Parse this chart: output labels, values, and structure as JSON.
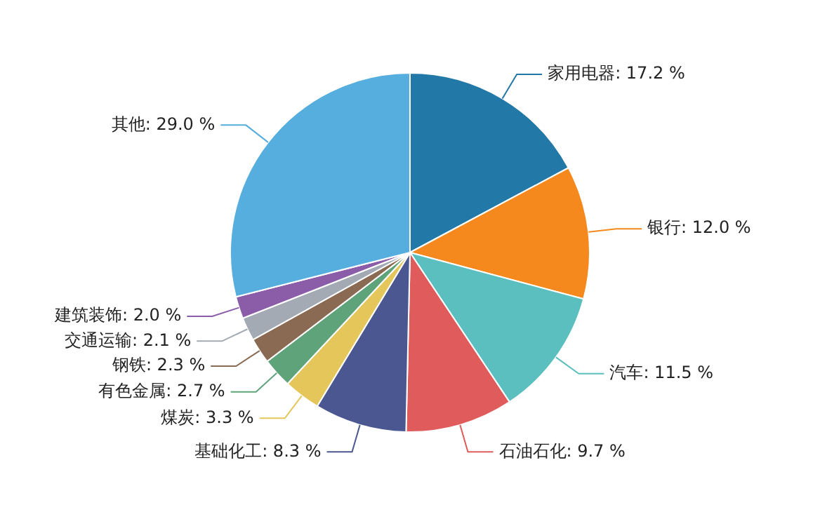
{
  "chart_data": {
    "type": "pie",
    "categories": [
      "家用电器",
      "银行",
      "汽车",
      "石油石化",
      "基础化工",
      "煤炭",
      "有色金属",
      "钢铁",
      "交通运输",
      "建筑装饰",
      "其他"
    ],
    "values": [
      17.2,
      12.0,
      11.5,
      9.7,
      8.3,
      3.3,
      2.7,
      2.3,
      2.1,
      2.0,
      29.0
    ],
    "value_labels": [
      "17.2 %",
      "12.0 %",
      "11.5 %",
      "9.7 %",
      "8.3 %",
      "3.3 %",
      "2.7 %",
      "2.3 %",
      "2.1 %",
      "2.0 %",
      "29.0 %"
    ],
    "colors": [
      "#2278a6",
      "#f5891e",
      "#5bbfbf",
      "#e05c5c",
      "#4a5790",
      "#e5c65a",
      "#5fa37a",
      "#8a6a52",
      "#a3aab3",
      "#8b5ca8",
      "#55aedd"
    ],
    "legend": false
  }
}
